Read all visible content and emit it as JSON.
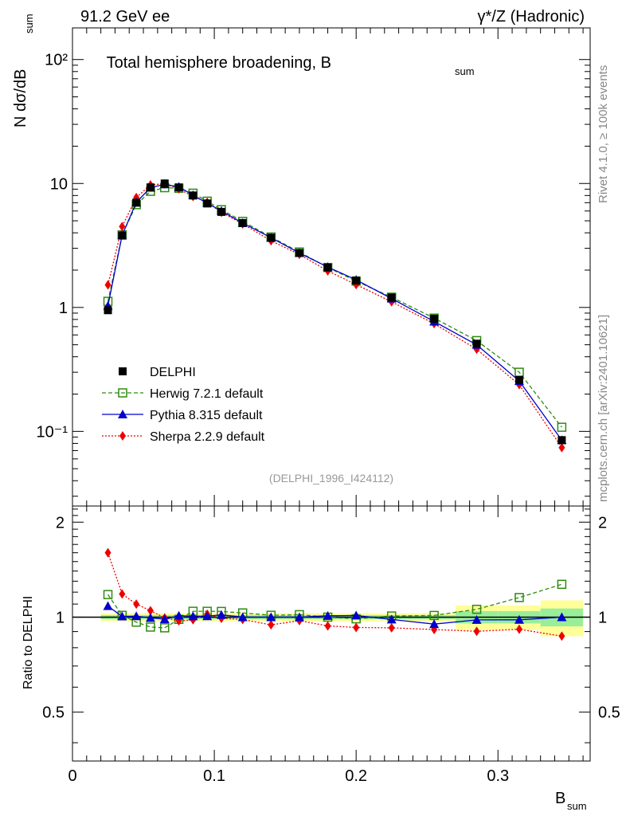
{
  "header": {
    "left": "91.2 GeV ee",
    "right": "γ*/Z (Hadronic)"
  },
  "side": {
    "rivet": "Rivet 4.1.0, ≥ 100k events",
    "mcplots": "mcplots.cern.ch [arXiv:2401.10621]"
  },
  "chart_data": {
    "type": "scatter",
    "title": "Total hemisphere broadening, B",
    "title_sub": "sum",
    "ylabel": "N  dσ/dB",
    "ylabel_sub": "sum",
    "xlabel": "B",
    "xlabel_sub": "sum",
    "ratio_ylabel": "Ratio to DELPHI",
    "analysis_tag": "(DELPHI_1996_I424112)",
    "xlim": [
      0,
      0.365
    ],
    "ylim": [
      0.025,
      180
    ],
    "ratio_ylim": [
      0.35,
      2.25
    ],
    "x_ticks": [
      "0",
      "0.1",
      "0.2",
      "0.3"
    ],
    "y_ticks": [
      "10⁻¹",
      "1",
      "10",
      "10²"
    ],
    "ratio_ticks": [
      "0.5",
      "1",
      "2"
    ],
    "x": [
      0.025,
      0.035,
      0.045,
      0.055,
      0.065,
      0.075,
      0.085,
      0.095,
      0.105,
      0.12,
      0.14,
      0.16,
      0.18,
      0.2,
      0.225,
      0.255,
      0.285,
      0.315,
      0.345
    ],
    "series": [
      {
        "name": "DELPHI",
        "color": "#000000",
        "marker": "square-filled",
        "line": "none",
        "values": [
          0.95,
          3.8,
          7.0,
          9.3,
          10.0,
          9.3,
          8.0,
          6.9,
          5.9,
          4.8,
          3.65,
          2.75,
          2.1,
          1.65,
          1.2,
          0.81,
          0.51,
          0.26,
          0.085
        ]
      },
      {
        "name": "Herwig 7.2.1 default",
        "color": "#2e8b10",
        "marker": "square-open",
        "line": "dashed",
        "values": [
          1.12,
          3.85,
          6.75,
          8.65,
          9.25,
          9.15,
          8.35,
          7.2,
          6.15,
          4.95,
          3.7,
          2.8,
          2.1,
          1.63,
          1.21,
          0.82,
          0.54,
          0.3,
          0.108
        ]
      },
      {
        "name": "Pythia 8.315 default",
        "color": "#0000cc",
        "marker": "triangle",
        "line": "solid",
        "values": [
          1.03,
          3.82,
          7.05,
          9.25,
          9.85,
          9.4,
          8.05,
          6.95,
          6.0,
          4.8,
          3.65,
          2.75,
          2.12,
          1.67,
          1.18,
          0.77,
          0.5,
          0.255,
          0.085
        ]
      },
      {
        "name": "Sherpa 2.2.9 default",
        "color": "#ee0000",
        "marker": "diamond",
        "line": "dotted",
        "values": [
          1.52,
          4.5,
          7.7,
          9.75,
          9.95,
          9.05,
          7.85,
          7.05,
          5.85,
          4.72,
          3.45,
          2.68,
          1.97,
          1.53,
          1.11,
          0.74,
          0.46,
          0.238,
          0.074
        ]
      }
    ]
  }
}
